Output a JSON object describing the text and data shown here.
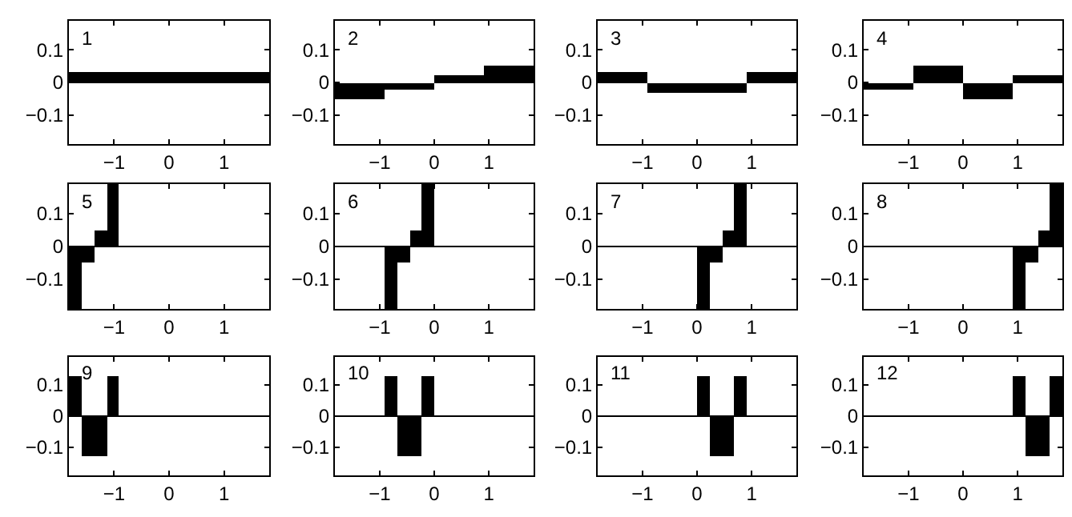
{
  "chart_data": [
    {
      "type": "bar",
      "title": "1",
      "x": [
        0
      ],
      "values": [
        0.03
      ],
      "color": "#000000",
      "xlim": [
        -1.82,
        1.82
      ],
      "ylim": [
        -0.19,
        0.19
      ],
      "xticks": [
        -1,
        0,
        1
      ],
      "yticks": [
        -0.1,
        0,
        0.1
      ]
    },
    {
      "type": "bar",
      "title": "2",
      "x": [
        -1.365,
        -0.455,
        0.455,
        1.365
      ],
      "values": [
        -0.05,
        -0.02,
        0.02,
        0.05
      ],
      "color": "#000000",
      "xlim": [
        -1.82,
        1.82
      ],
      "ylim": [
        -0.19,
        0.19
      ],
      "xticks": [
        -1,
        0,
        1
      ],
      "yticks": [
        -0.1,
        0,
        0.1
      ]
    },
    {
      "type": "bar",
      "title": "3",
      "x": [
        -1.365,
        -0.455,
        0.455,
        1.365
      ],
      "values": [
        0.03,
        -0.03,
        -0.03,
        0.03
      ],
      "color": "#000000",
      "xlim": [
        -1.82,
        1.82
      ],
      "ylim": [
        -0.19,
        0.19
      ],
      "xticks": [
        -1,
        0,
        1
      ],
      "yticks": [
        -0.1,
        0,
        0.1
      ]
    },
    {
      "type": "bar",
      "title": "4",
      "x": [
        -1.365,
        -0.455,
        0.455,
        1.365
      ],
      "values": [
        -0.02,
        0.05,
        -0.05,
        0.02
      ],
      "color": "#000000",
      "xlim": [
        -1.82,
        1.82
      ],
      "ylim": [
        -0.19,
        0.19
      ],
      "xticks": [
        -1,
        0,
        1
      ],
      "yticks": [
        -0.1,
        0,
        0.1
      ]
    },
    {
      "type": "bar",
      "title": "5",
      "x": [
        -1.71,
        -1.48,
        -1.25,
        -1.02
      ],
      "values": [
        -0.19,
        -0.05,
        0.05,
        0.19
      ],
      "color": "#000000",
      "xlim": [
        -1.82,
        1.82
      ],
      "ylim": [
        -0.19,
        0.19
      ],
      "xticks": [
        -1,
        0,
        1
      ],
      "yticks": [
        -0.1,
        0,
        0.1
      ],
      "ref_lines": [
        {
          "axis": "y",
          "value": 0,
          "color": "#000000"
        }
      ]
    },
    {
      "type": "bar",
      "title": "6",
      "x": [
        -0.8,
        -0.57,
        -0.34,
        -0.11
      ],
      "values": [
        -0.19,
        -0.05,
        0.05,
        0.19
      ],
      "color": "#000000",
      "xlim": [
        -1.82,
        1.82
      ],
      "ylim": [
        -0.19,
        0.19
      ],
      "xticks": [
        -1,
        0,
        1
      ],
      "yticks": [
        -0.1,
        0,
        0.1
      ],
      "ref_lines": [
        {
          "axis": "y",
          "value": 0,
          "color": "#000000"
        }
      ]
    },
    {
      "type": "bar",
      "title": "7",
      "x": [
        0.11,
        0.34,
        0.57,
        0.8
      ],
      "values": [
        -0.19,
        -0.05,
        0.05,
        0.19
      ],
      "color": "#000000",
      "xlim": [
        -1.82,
        1.82
      ],
      "ylim": [
        -0.19,
        0.19
      ],
      "xticks": [
        -1,
        0,
        1
      ],
      "yticks": [
        -0.1,
        0,
        0.1
      ],
      "ref_lines": [
        {
          "axis": "y",
          "value": 0,
          "color": "#000000"
        }
      ]
    },
    {
      "type": "bar",
      "title": "8",
      "x": [
        1.02,
        1.25,
        1.48,
        1.71
      ],
      "values": [
        -0.19,
        -0.05,
        0.05,
        0.19
      ],
      "color": "#000000",
      "xlim": [
        -1.82,
        1.82
      ],
      "ylim": [
        -0.19,
        0.19
      ],
      "xticks": [
        -1,
        0,
        1
      ],
      "yticks": [
        -0.1,
        0,
        0.1
      ],
      "ref_lines": [
        {
          "axis": "y",
          "value": 0,
          "color": "#000000"
        }
      ]
    },
    {
      "type": "bar",
      "title": "9",
      "x": [
        -1.71,
        -1.48,
        -1.25,
        -1.02
      ],
      "values": [
        0.13,
        -0.13,
        -0.13,
        0.13
      ],
      "color": "#000000",
      "xlim": [
        -1.82,
        1.82
      ],
      "ylim": [
        -0.19,
        0.19
      ],
      "xticks": [
        -1,
        0,
        1
      ],
      "yticks": [
        -0.1,
        0,
        0.1
      ],
      "ref_lines": [
        {
          "axis": "y",
          "value": 0,
          "color": "#000000"
        }
      ]
    },
    {
      "type": "bar",
      "title": "10",
      "x": [
        -0.8,
        -0.57,
        -0.34,
        -0.11
      ],
      "values": [
        0.13,
        -0.13,
        -0.13,
        0.13
      ],
      "color": "#000000",
      "xlim": [
        -1.82,
        1.82
      ],
      "ylim": [
        -0.19,
        0.19
      ],
      "xticks": [
        -1,
        0,
        1
      ],
      "yticks": [
        -0.1,
        0,
        0.1
      ],
      "ref_lines": [
        {
          "axis": "y",
          "value": 0,
          "color": "#000000"
        }
      ]
    },
    {
      "type": "bar",
      "title": "11",
      "x": [
        0.11,
        0.34,
        0.57,
        0.8
      ],
      "values": [
        0.13,
        -0.13,
        -0.13,
        0.13
      ],
      "color": "#000000",
      "xlim": [
        -1.82,
        1.82
      ],
      "ylim": [
        -0.19,
        0.19
      ],
      "xticks": [
        -1,
        0,
        1
      ],
      "yticks": [
        -0.1,
        0,
        0.1
      ],
      "ref_lines": [
        {
          "axis": "y",
          "value": 0,
          "color": "#000000"
        }
      ]
    },
    {
      "type": "bar",
      "title": "12",
      "x": [
        1.02,
        1.25,
        1.48,
        1.71
      ],
      "values": [
        0.13,
        -0.13,
        -0.13,
        0.13
      ],
      "color": "#000000",
      "xlim": [
        -1.82,
        1.82
      ],
      "ylim": [
        -0.19,
        0.19
      ],
      "xticks": [
        -1,
        0,
        1
      ],
      "yticks": [
        -0.1,
        0,
        0.1
      ],
      "ref_lines": [
        {
          "axis": "y",
          "value": 0,
          "color": "#000000"
        }
      ]
    }
  ]
}
